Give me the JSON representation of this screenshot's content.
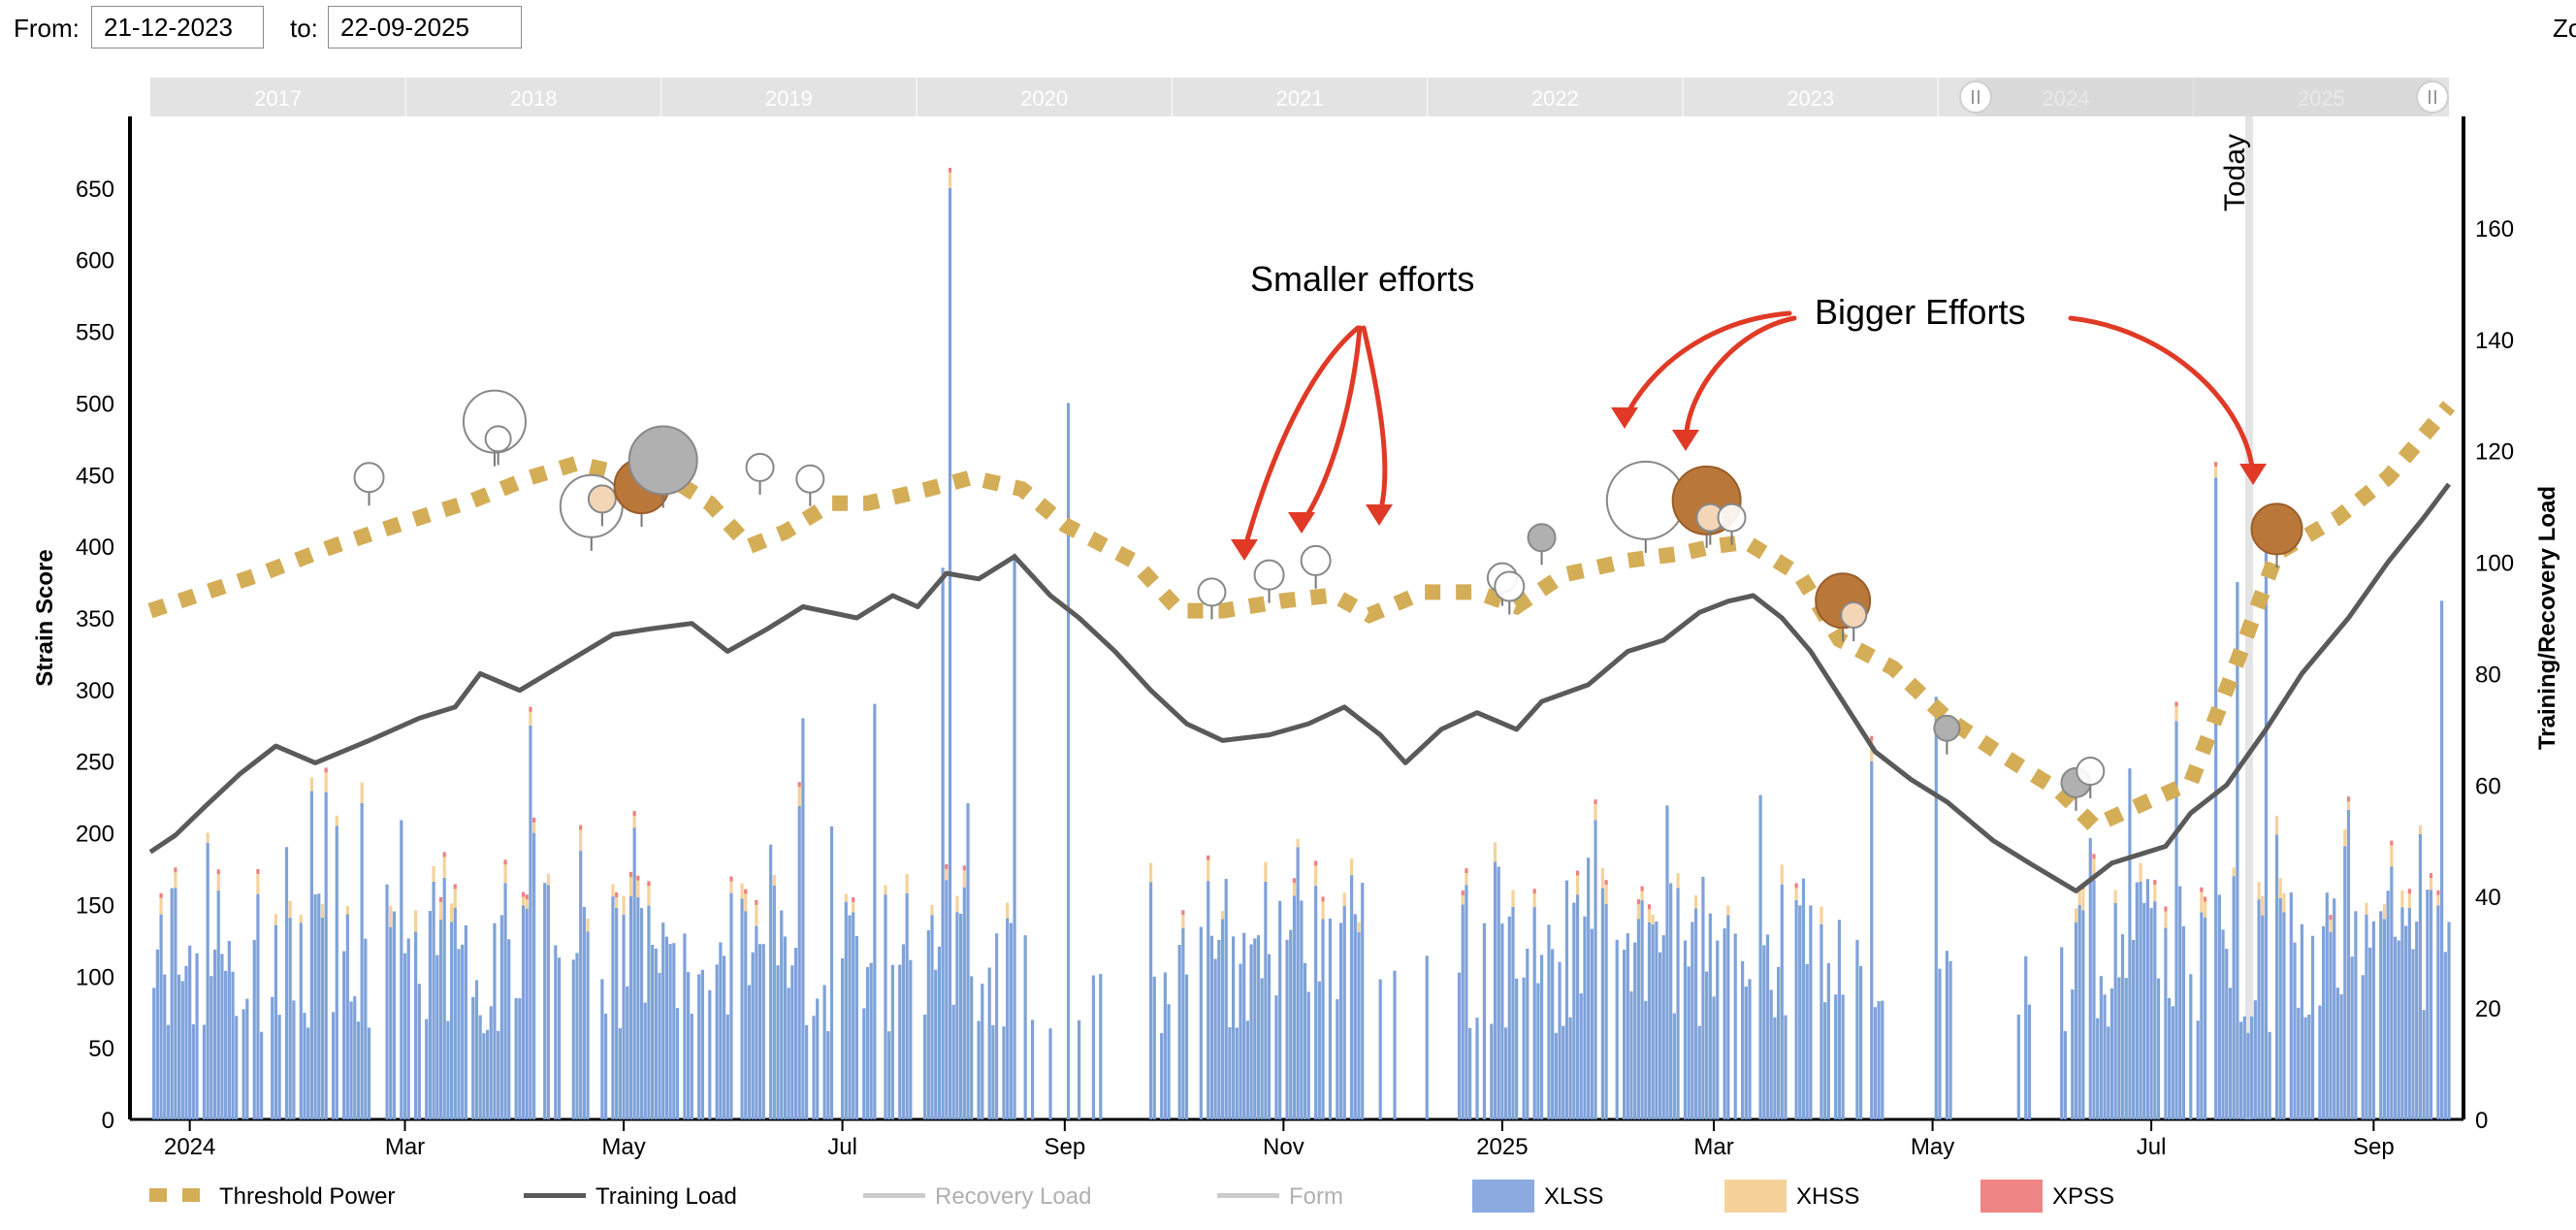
{
  "range": {
    "from_label": "From:",
    "from_value": "21-12-2023",
    "to_label": "to:",
    "to_value": "22-09-2025",
    "zoom_label": "Zo"
  },
  "navigator_years": [
    "2017",
    "2018",
    "2019",
    "2020",
    "2021",
    "2022",
    "2023",
    "2024",
    "2025"
  ],
  "today_label": "Today",
  "annotations": {
    "smaller": "Smaller efforts",
    "bigger": "Bigger Efforts"
  },
  "colors": {
    "threshold": "#d4ad57",
    "training": "#5a5a5a",
    "recovery": "#cccccc",
    "form": "#cccccc",
    "xlss": "#7fa2d9",
    "xhss": "#f5d29a",
    "xpss": "#ef8080",
    "arrow": "#e03a26",
    "bubble_dark": "#b9773a",
    "bubble_gray": "#b0b0b0"
  },
  "legend": [
    {
      "label": "Threshold Power",
      "icon": "dashed-line",
      "color": "#d4ad57",
      "muted": false
    },
    {
      "label": "Training Load",
      "icon": "solid-line",
      "color": "#5a5a5a",
      "muted": false
    },
    {
      "label": "Recovery Load",
      "icon": "solid-line",
      "color": "#cccccc",
      "muted": true
    },
    {
      "label": "Form",
      "icon": "solid-line",
      "color": "#cccccc",
      "muted": true
    },
    {
      "label": "XLSS",
      "icon": "swatch",
      "color": "#8aaae0",
      "muted": false
    },
    {
      "label": "XHSS",
      "icon": "swatch",
      "color": "#f5d29a",
      "muted": false
    },
    {
      "label": "XPSS",
      "icon": "swatch",
      "color": "#ef8585",
      "muted": false
    }
  ],
  "chart_data": {
    "type": "line",
    "x_range": [
      "2023-12-21",
      "2025-09-22"
    ],
    "x_ticks": [
      {
        "date": "2024-01-01",
        "label": "2024"
      },
      {
        "date": "2024-03-01",
        "label": "Mar"
      },
      {
        "date": "2024-05-01",
        "label": "May"
      },
      {
        "date": "2024-07-01",
        "label": "Jul"
      },
      {
        "date": "2024-09-01",
        "label": "Sep"
      },
      {
        "date": "2024-11-01",
        "label": "Nov"
      },
      {
        "date": "2025-01-01",
        "label": "2025"
      },
      {
        "date": "2025-03-01",
        "label": "Mar"
      },
      {
        "date": "2025-05-01",
        "label": "May"
      },
      {
        "date": "2025-07-01",
        "label": "Jul"
      },
      {
        "date": "2025-09-01",
        "label": "Sep"
      }
    ],
    "y_left": {
      "label": "Strain Score",
      "min": 0,
      "max": 700,
      "ticks": [
        0,
        50,
        100,
        150,
        200,
        250,
        300,
        350,
        400,
        450,
        500,
        550,
        600,
        650
      ]
    },
    "y_right": {
      "label": "Training/Recovery Load",
      "min": 0,
      "max": 180,
      "ticks": [
        0,
        20,
        40,
        60,
        80,
        100,
        120,
        140,
        160
      ]
    },
    "today": "2025-07-28",
    "series": [
      {
        "name": "Threshold Power",
        "axis": "left",
        "style": "dashed",
        "points": [
          [
            "2023-12-21",
            355
          ],
          [
            "2024-01-20",
            380
          ],
          [
            "2024-02-10",
            400
          ],
          [
            "2024-03-05",
            420
          ],
          [
            "2024-03-20",
            432
          ],
          [
            "2024-04-05",
            448
          ],
          [
            "2024-04-18",
            458
          ],
          [
            "2024-04-28",
            452
          ],
          [
            "2024-05-15",
            446
          ],
          [
            "2024-05-25",
            430
          ],
          [
            "2024-06-05",
            400
          ],
          [
            "2024-06-15",
            410
          ],
          [
            "2024-06-28",
            430
          ],
          [
            "2024-07-08",
            430
          ],
          [
            "2024-07-25",
            440
          ],
          [
            "2024-08-06",
            448
          ],
          [
            "2024-08-20",
            440
          ],
          [
            "2024-09-01",
            415
          ],
          [
            "2024-09-20",
            390
          ],
          [
            "2024-10-03",
            355
          ],
          [
            "2024-10-15",
            355
          ],
          [
            "2024-11-01",
            362
          ],
          [
            "2024-11-15",
            366
          ],
          [
            "2024-11-25",
            352
          ],
          [
            "2024-12-10",
            368
          ],
          [
            "2024-12-25",
            368
          ],
          [
            "2025-01-05",
            358
          ],
          [
            "2025-01-18",
            380
          ],
          [
            "2025-02-05",
            390
          ],
          [
            "2025-02-20",
            395
          ],
          [
            "2025-03-01",
            400
          ],
          [
            "2025-03-10",
            403
          ],
          [
            "2025-03-25",
            380
          ],
          [
            "2025-04-05",
            335
          ],
          [
            "2025-04-20",
            315
          ],
          [
            "2025-05-05",
            280
          ],
          [
            "2025-05-20",
            255
          ],
          [
            "2025-06-05",
            230
          ],
          [
            "2025-06-15",
            205
          ],
          [
            "2025-06-30",
            222
          ],
          [
            "2025-07-12",
            235
          ],
          [
            "2025-07-25",
            320
          ],
          [
            "2025-08-05",
            395
          ],
          [
            "2025-08-22",
            420
          ],
          [
            "2025-09-05",
            448
          ],
          [
            "2025-09-22",
            498
          ]
        ]
      },
      {
        "name": "Training Load",
        "axis": "right",
        "style": "solid",
        "points": [
          [
            "2023-12-21",
            48
          ],
          [
            "2023-12-28",
            51
          ],
          [
            "2024-01-05",
            56
          ],
          [
            "2024-01-15",
            62
          ],
          [
            "2024-01-25",
            67
          ],
          [
            "2024-02-05",
            64
          ],
          [
            "2024-02-20",
            68
          ],
          [
            "2024-03-05",
            72
          ],
          [
            "2024-03-15",
            74
          ],
          [
            "2024-03-22",
            80
          ],
          [
            "2024-04-02",
            77
          ],
          [
            "2024-04-15",
            82
          ],
          [
            "2024-04-28",
            87
          ],
          [
            "2024-05-08",
            88
          ],
          [
            "2024-05-20",
            89
          ],
          [
            "2024-05-30",
            84
          ],
          [
            "2024-06-10",
            88
          ],
          [
            "2024-06-20",
            92
          ],
          [
            "2024-07-05",
            90
          ],
          [
            "2024-07-15",
            94
          ],
          [
            "2024-07-22",
            92
          ],
          [
            "2024-07-30",
            98
          ],
          [
            "2024-08-08",
            97
          ],
          [
            "2024-08-18",
            101
          ],
          [
            "2024-08-28",
            94
          ],
          [
            "2024-09-05",
            90
          ],
          [
            "2024-09-15",
            84
          ],
          [
            "2024-09-25",
            77
          ],
          [
            "2024-10-05",
            71
          ],
          [
            "2024-10-15",
            68
          ],
          [
            "2024-10-28",
            69
          ],
          [
            "2024-11-08",
            71
          ],
          [
            "2024-11-18",
            74
          ],
          [
            "2024-11-28",
            69
          ],
          [
            "2024-12-05",
            64
          ],
          [
            "2024-12-15",
            70
          ],
          [
            "2024-12-25",
            73
          ],
          [
            "2025-01-05",
            70
          ],
          [
            "2025-01-12",
            75
          ],
          [
            "2025-01-25",
            78
          ],
          [
            "2025-02-05",
            84
          ],
          [
            "2025-02-15",
            86
          ],
          [
            "2025-02-25",
            91
          ],
          [
            "2025-03-05",
            93
          ],
          [
            "2025-03-12",
            94
          ],
          [
            "2025-03-20",
            90
          ],
          [
            "2025-03-28",
            84
          ],
          [
            "2025-04-05",
            76
          ],
          [
            "2025-04-15",
            66
          ],
          [
            "2025-04-25",
            61
          ],
          [
            "2025-05-05",
            57
          ],
          [
            "2025-05-18",
            50
          ],
          [
            "2025-05-28",
            46
          ],
          [
            "2025-06-10",
            41
          ],
          [
            "2025-06-20",
            46
          ],
          [
            "2025-07-05",
            49
          ],
          [
            "2025-07-12",
            55
          ],
          [
            "2025-07-22",
            60
          ],
          [
            "2025-08-02",
            70
          ],
          [
            "2025-08-12",
            80
          ],
          [
            "2025-08-25",
            90
          ],
          [
            "2025-09-05",
            100
          ],
          [
            "2025-09-15",
            108
          ],
          [
            "2025-09-22",
            114
          ]
        ]
      }
    ],
    "bars": {
      "axis": "left",
      "stacked": [
        "XLSS",
        "XHSS",
        "XPSS"
      ],
      "note": "daily strain scores, approx. 0–200 with spikes",
      "spikes": [
        [
          "2024-07-31",
          650
        ],
        [
          "2024-09-02",
          500
        ],
        [
          "2024-07-29",
          385
        ],
        [
          "2024-08-18",
          395
        ],
        [
          "2025-07-19",
          448
        ],
        [
          "2025-07-25",
          375
        ],
        [
          "2025-08-02",
          410
        ],
        [
          "2025-09-20",
          362
        ],
        [
          "2024-04-05",
          275
        ],
        [
          "2024-06-20",
          280
        ],
        [
          "2024-07-10",
          290
        ],
        [
          "2025-05-02",
          295
        ],
        [
          "2025-04-14",
          250
        ],
        [
          "2025-06-25",
          245
        ],
        [
          "2025-07-08",
          278
        ],
        [
          "2024-11-05",
          190
        ]
      ]
    },
    "bubbles": [
      {
        "date": "2024-02-20",
        "y": 448,
        "r": 15,
        "kind": "white"
      },
      {
        "date": "2024-03-26",
        "y": 487,
        "r": 32,
        "kind": "white"
      },
      {
        "date": "2024-03-27",
        "y": 475,
        "r": 13,
        "kind": "white"
      },
      {
        "date": "2024-04-22",
        "y": 428,
        "r": 32,
        "kind": "white"
      },
      {
        "date": "2024-04-25",
        "y": 433,
        "r": 14,
        "kind": "peach"
      },
      {
        "date": "2024-05-06",
        "y": 442,
        "r": 28,
        "kind": "dark"
      },
      {
        "date": "2024-05-12",
        "y": 460,
        "r": 35,
        "kind": "gray"
      },
      {
        "date": "2024-06-08",
        "y": 455,
        "r": 14,
        "kind": "white"
      },
      {
        "date": "2024-06-22",
        "y": 447,
        "r": 14,
        "kind": "white"
      },
      {
        "date": "2024-10-12",
        "y": 368,
        "r": 14,
        "kind": "white"
      },
      {
        "date": "2024-10-28",
        "y": 380,
        "r": 15,
        "kind": "white"
      },
      {
        "date": "2024-11-10",
        "y": 390,
        "r": 15,
        "kind": "white"
      },
      {
        "date": "2025-01-01",
        "y": 378,
        "r": 15,
        "kind": "white"
      },
      {
        "date": "2025-01-03",
        "y": 372,
        "r": 15,
        "kind": "white"
      },
      {
        "date": "2025-01-12",
        "y": 406,
        "r": 14,
        "kind": "gray"
      },
      {
        "date": "2025-02-10",
        "y": 432,
        "r": 40,
        "kind": "white"
      },
      {
        "date": "2025-02-27",
        "y": 432,
        "r": 35,
        "kind": "dark"
      },
      {
        "date": "2025-02-28",
        "y": 420,
        "r": 14,
        "kind": "peach"
      },
      {
        "date": "2025-03-06",
        "y": 420,
        "r": 14,
        "kind": "white"
      },
      {
        "date": "2025-04-06",
        "y": 362,
        "r": 28,
        "kind": "dark"
      },
      {
        "date": "2025-04-09",
        "y": 352,
        "r": 13,
        "kind": "peach"
      },
      {
        "date": "2025-05-05",
        "y": 273,
        "r": 13,
        "kind": "gray"
      },
      {
        "date": "2025-06-10",
        "y": 235,
        "r": 15,
        "kind": "gray"
      },
      {
        "date": "2025-06-14",
        "y": 243,
        "r": 14,
        "kind": "white"
      },
      {
        "date": "2025-08-05",
        "y": 412,
        "r": 26,
        "kind": "dark"
      }
    ]
  }
}
